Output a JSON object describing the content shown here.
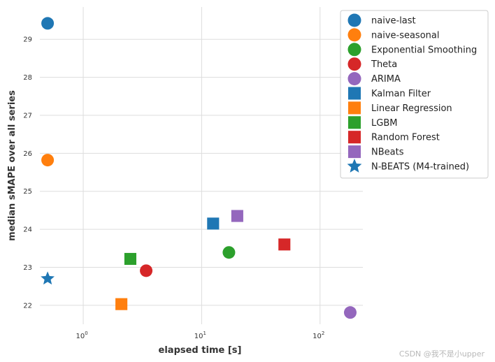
{
  "chart_data": {
    "type": "scatter",
    "xlabel": "elapsed time [s]",
    "ylabel": "median sMAPE over all series",
    "x_scale": "log",
    "xlim": [
      0.43,
      230
    ],
    "ylim": [
      21.5,
      29.85
    ],
    "x_ticks": [
      {
        "value": 1,
        "base": "10",
        "exp": "0"
      },
      {
        "value": 10,
        "base": "10",
        "exp": "1"
      },
      {
        "value": 100,
        "base": "10",
        "exp": "2"
      }
    ],
    "y_ticks": [
      {
        "value": 22,
        "label": "22"
      },
      {
        "value": 23,
        "label": "23"
      },
      {
        "value": 24,
        "label": "24"
      },
      {
        "value": 25,
        "label": "25"
      },
      {
        "value": 26,
        "label": "26"
      },
      {
        "value": 27,
        "label": "27"
      },
      {
        "value": 28,
        "label": "28"
      },
      {
        "value": 29,
        "label": "29"
      }
    ],
    "grid": true,
    "legend_position": "top-right",
    "series": [
      {
        "name": "naive-last",
        "marker": "circle",
        "color": "#1f77b4",
        "x": 0.5,
        "y": 29.42
      },
      {
        "name": "naive-seasonal",
        "marker": "circle",
        "color": "#ff7f0e",
        "x": 0.5,
        "y": 25.82
      },
      {
        "name": "Exponential Smoothing",
        "marker": "circle",
        "color": "#2ca02c",
        "x": 17,
        "y": 23.39
      },
      {
        "name": "Theta",
        "marker": "circle",
        "color": "#d62728",
        "x": 3.4,
        "y": 22.91
      },
      {
        "name": "ARIMA",
        "marker": "circle",
        "color": "#9467bd",
        "x": 180,
        "y": 21.81
      },
      {
        "name": "Kalman Filter",
        "marker": "square",
        "color": "#1f77b4",
        "x": 12.5,
        "y": 24.15
      },
      {
        "name": "Linear Regression",
        "marker": "square",
        "color": "#ff7f0e",
        "x": 2.1,
        "y": 22.03
      },
      {
        "name": "LGBM",
        "marker": "square",
        "color": "#2ca02c",
        "x": 2.5,
        "y": 23.22
      },
      {
        "name": "Random Forest",
        "marker": "square",
        "color": "#d62728",
        "x": 50,
        "y": 23.6
      },
      {
        "name": "NBeats",
        "marker": "square",
        "color": "#9467bd",
        "x": 20,
        "y": 24.35
      },
      {
        "name": "N-BEATS (M4-trained)",
        "marker": "star",
        "color": "#1f77b4",
        "x": 0.5,
        "y": 22.7
      }
    ]
  },
  "watermark": "CSDN @我不是小upper"
}
